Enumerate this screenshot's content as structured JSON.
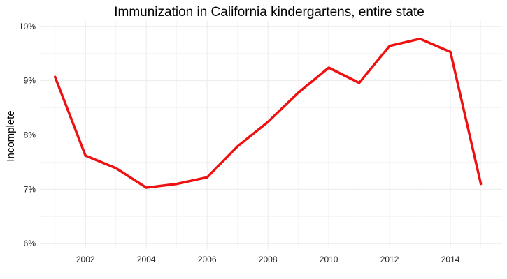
{
  "chart_data": {
    "type": "line",
    "title": "Immunization in California kindergartens, entire state",
    "xlabel": "",
    "ylabel": "Incomplete",
    "x": [
      2001,
      2002,
      2003,
      2004,
      2005,
      2006,
      2007,
      2008,
      2009,
      2010,
      2011,
      2012,
      2013,
      2014,
      2015
    ],
    "series": [
      {
        "values": [
          9.07,
          7.62,
          7.39,
          7.03,
          7.1,
          7.22,
          7.79,
          8.24,
          8.78,
          9.24,
          8.96,
          9.64,
          9.77,
          9.53,
          7.1
        ],
        "color": "#ee1111"
      }
    ],
    "xlim": [
      2000.5,
      2015.7
    ],
    "ylim": [
      5.9,
      10.1
    ],
    "xticks": [
      2002,
      2004,
      2006,
      2008,
      2010,
      2012,
      2014
    ],
    "xtick_labels": [
      "2002",
      "2004",
      "2006",
      "2008",
      "2010",
      "2012",
      "2014"
    ],
    "yticks": [
      6,
      7,
      8,
      9,
      10
    ],
    "ytick_labels": [
      "6%",
      "7%",
      "8%",
      "9%",
      "10%"
    ],
    "grid": true,
    "legend": "none"
  }
}
